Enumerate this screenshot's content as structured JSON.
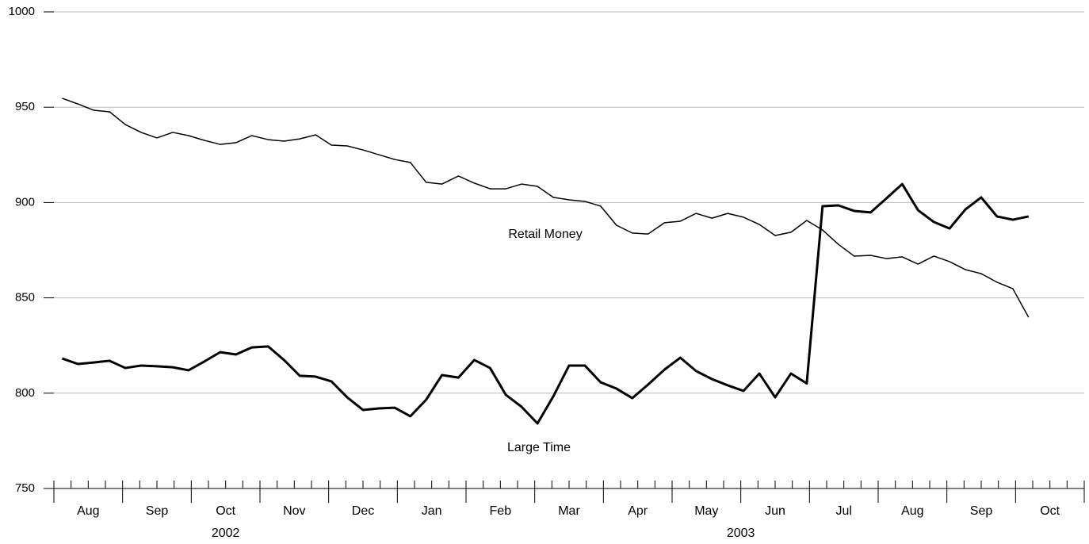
{
  "chart_data": {
    "type": "line",
    "x": [
      0.12,
      0.35,
      0.58,
      0.81,
      1.04,
      1.27,
      1.5,
      1.73,
      1.96,
      2.19,
      2.42,
      2.65,
      2.88,
      3.12,
      3.35,
      3.58,
      3.81,
      4.04,
      4.27,
      4.5,
      4.73,
      4.96,
      5.19,
      5.42,
      5.65,
      5.89,
      6.12,
      6.35,
      6.58,
      6.81,
      7.04,
      7.27,
      7.5,
      7.73,
      7.96,
      8.19,
      8.42,
      8.65,
      8.89,
      9.12,
      9.35,
      9.58,
      9.81,
      10.04,
      10.27,
      10.5,
      10.73,
      10.96,
      11.19,
      11.42,
      11.65,
      11.89,
      12.12,
      12.35,
      12.58,
      12.81,
      13.04,
      13.27,
      13.5,
      13.73,
      13.96,
      14.19
    ],
    "series": [
      {
        "name": "Retail Money",
        "color": "#000000",
        "width": 1.5,
        "values": [
          954.7,
          951.7,
          948.4,
          947.6,
          940.9,
          936.8,
          933.9,
          936.8,
          935.1,
          932.6,
          930.5,
          931.4,
          935.1,
          933.0,
          932.2,
          933.4,
          935.5,
          930.1,
          929.7,
          927.6,
          925.1,
          922.6,
          921.0,
          910.6,
          909.7,
          913.9,
          910.2,
          907.2,
          907.2,
          909.7,
          908.5,
          902.7,
          901.4,
          900.6,
          898.1,
          888.1,
          884.0,
          883.5,
          889.4,
          890.2,
          894.3,
          891.8,
          894.3,
          892.3,
          888.5,
          882.7,
          884.4,
          890.6,
          885.6,
          878.1,
          871.9,
          872.3,
          870.6,
          871.5,
          867.7,
          871.9,
          869.0,
          864.8,
          862.7,
          858.2,
          854.8,
          839.8
        ]
      },
      {
        "name": "Large Time",
        "color": "#000000",
        "width": 3,
        "values": [
          818.2,
          815.3,
          816.1,
          817.0,
          813.2,
          814.5,
          814.1,
          813.6,
          812.0,
          816.6,
          821.5,
          820.3,
          824.0,
          824.5,
          817.4,
          809.1,
          808.7,
          806.2,
          797.8,
          791.2,
          792.0,
          792.4,
          787.9,
          796.6,
          809.5,
          808.2,
          817.4,
          813.2,
          799.1,
          792.8,
          784.1,
          798.3,
          814.5,
          814.5,
          805.7,
          802.4,
          797.4,
          804.5,
          812.4,
          818.6,
          811.6,
          807.4,
          804.1,
          801.2,
          810.3,
          797.8,
          810.3,
          805.1,
          898.1,
          898.5,
          895.6,
          894.8,
          902.2,
          909.7,
          896.0,
          889.8,
          886.4,
          896.4,
          902.7,
          892.7,
          891.0,
          892.7
        ]
      }
    ],
    "xlim": [
      0,
      15
    ],
    "xmajor": [
      0,
      1,
      2,
      3,
      4,
      5,
      6,
      7,
      8,
      9,
      10,
      11,
      12,
      13,
      14,
      15
    ],
    "xticks": [
      {
        "value": 0.5,
        "label": "Aug"
      },
      {
        "value": 1.5,
        "label": "Sep"
      },
      {
        "value": 2.5,
        "label": "Oct"
      },
      {
        "value": 3.5,
        "label": "Nov"
      },
      {
        "value": 4.5,
        "label": "Dec"
      },
      {
        "value": 5.5,
        "label": "Jan"
      },
      {
        "value": 6.5,
        "label": "Feb"
      },
      {
        "value": 7.5,
        "label": "Mar"
      },
      {
        "value": 8.5,
        "label": "Apr"
      },
      {
        "value": 9.5,
        "label": "May"
      },
      {
        "value": 10.5,
        "label": "Jun"
      },
      {
        "value": 11.5,
        "label": "Jul"
      },
      {
        "value": 12.5,
        "label": "Aug"
      },
      {
        "value": 13.5,
        "label": "Sep"
      },
      {
        "value": 14.5,
        "label": "Oct"
      }
    ],
    "year_labels": [
      {
        "value": 2.5,
        "label": "2002"
      },
      {
        "value": 10,
        "label": "2003"
      }
    ],
    "ylim": [
      750,
      1000
    ],
    "yticks": [
      750,
      800,
      850,
      900,
      950,
      1000
    ],
    "grid": true
  }
}
